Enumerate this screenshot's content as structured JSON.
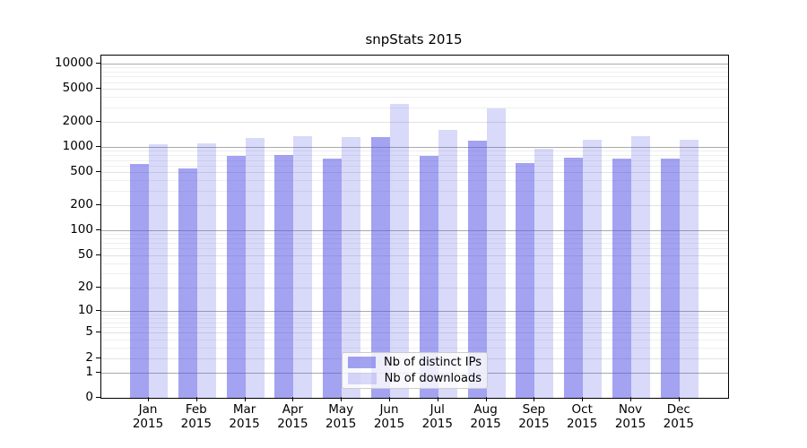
{
  "chart_data": {
    "type": "bar",
    "title": "snpStats 2015",
    "categories": [
      "Jan",
      "Feb",
      "Mar",
      "Apr",
      "May",
      "Jun",
      "Jul",
      "Aug",
      "Sep",
      "Oct",
      "Nov",
      "Dec"
    ],
    "year_label": "2015",
    "series": [
      {
        "name": "Nb of distinct IPs",
        "color": "#5151e5",
        "opacity": 0.53,
        "values": [
          630,
          550,
          780,
          800,
          730,
          1330,
          790,
          1190,
          650,
          750,
          730,
          730
        ]
      },
      {
        "name": "Nb of downloads",
        "color": "#5151e5",
        "opacity": 0.22,
        "values": [
          1070,
          1100,
          1280,
          1340,
          1300,
          3300,
          1600,
          2900,
          960,
          1210,
          1340,
          1220
        ]
      }
    ],
    "y_axis": {
      "scale": "log10(value+1)",
      "ticks": [
        0,
        1,
        2,
        5,
        10,
        20,
        50,
        100,
        200,
        500,
        1000,
        2000,
        5000,
        10000
      ],
      "ylim": [
        0,
        10000
      ]
    },
    "grid": {
      "decade_lines": [
        1,
        10,
        100,
        1000,
        10000
      ],
      "decade_color": "#aaaaaa",
      "submajor_lines": [
        2,
        5,
        20,
        50,
        200,
        500,
        2000,
        5000
      ],
      "submajor_color": "#e2e2e2",
      "minor_color": "#efefef"
    },
    "legend_position": "lower center inside plot"
  }
}
